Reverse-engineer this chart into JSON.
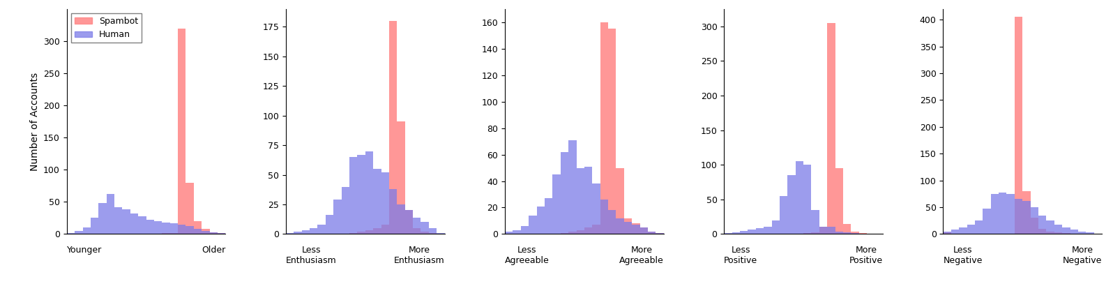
{
  "panels": [
    {
      "xlabel_left": "Younger",
      "xlabel_right": "Older",
      "ylabel": "Number of Accounts",
      "ylim": [
        0,
        350
      ],
      "yticks": [
        0,
        50,
        100,
        150,
        200,
        250,
        300
      ],
      "n_bins": 20,
      "spambot_vals": [
        0,
        0,
        0,
        0,
        0,
        0,
        0,
        0,
        0,
        0,
        0,
        0,
        1,
        2,
        320,
        80,
        20,
        8,
        3,
        1
      ],
      "human_vals": [
        2,
        5,
        10,
        25,
        48,
        62,
        42,
        38,
        32,
        28,
        22,
        20,
        18,
        17,
        15,
        12,
        8,
        5,
        3,
        1
      ]
    },
    {
      "xlabel_left": "Less\nEnthusiasm",
      "xlabel_right": "More\nEnthusiasm",
      "ylim": [
        0,
        190
      ],
      "yticks": [
        0,
        25,
        50,
        75,
        100,
        125,
        150,
        175
      ],
      "n_bins": 20,
      "spambot_vals": [
        0,
        0,
        0,
        0,
        0,
        0,
        0,
        0,
        1,
        2,
        3,
        5,
        8,
        180,
        95,
        20,
        5,
        2,
        1,
        0
      ],
      "human_vals": [
        1,
        2,
        3,
        5,
        8,
        16,
        29,
        40,
        65,
        67,
        70,
        55,
        52,
        38,
        25,
        20,
        14,
        10,
        5,
        1
      ]
    },
    {
      "xlabel_left": "Less\nAgreeable",
      "xlabel_right": "More\nAgreeable",
      "ylim": [
        0,
        170
      ],
      "yticks": [
        0,
        20,
        40,
        60,
        80,
        100,
        120,
        140,
        160
      ],
      "n_bins": 20,
      "spambot_vals": [
        0,
        0,
        0,
        0,
        0,
        0,
        0,
        1,
        2,
        3,
        5,
        7,
        160,
        155,
        50,
        12,
        8,
        5,
        2,
        1
      ],
      "human_vals": [
        2,
        3,
        6,
        14,
        21,
        27,
        45,
        62,
        71,
        50,
        51,
        38,
        26,
        18,
        12,
        9,
        7,
        5,
        2,
        1
      ]
    },
    {
      "xlabel_left": "Less\nPositive",
      "xlabel_right": "More\nPositive",
      "ylim": [
        0,
        325
      ],
      "yticks": [
        0,
        50,
        100,
        150,
        200,
        250,
        300
      ],
      "n_bins": 20,
      "spambot_vals": [
        0,
        0,
        0,
        0,
        0,
        0,
        0,
        0,
        0,
        0,
        1,
        2,
        10,
        305,
        95,
        15,
        3,
        1,
        0,
        0
      ],
      "human_vals": [
        1,
        2,
        4,
        6,
        8,
        10,
        20,
        55,
        85,
        105,
        100,
        35,
        10,
        10,
        3,
        2,
        1,
        0,
        0,
        0
      ]
    },
    {
      "xlabel_left": "Less\nNegative",
      "xlabel_right": "More\nNegative",
      "ylim": [
        0,
        420
      ],
      "yticks": [
        0,
        50,
        100,
        150,
        200,
        250,
        300,
        350,
        400
      ],
      "n_bins": 20,
      "spambot_vals": [
        3,
        1,
        0,
        0,
        0,
        0,
        0,
        0,
        0,
        405,
        80,
        30,
        10,
        5,
        3,
        2,
        1,
        0,
        0,
        0
      ],
      "human_vals": [
        5,
        8,
        12,
        18,
        25,
        48,
        75,
        78,
        75,
        65,
        62,
        50,
        35,
        25,
        18,
        12,
        8,
        5,
        3,
        1
      ]
    }
  ],
  "spambot_color": "#FF8585",
  "human_color": "#7B7BE8",
  "spambot_alpha": 0.85,
  "human_alpha": 0.75,
  "show_legend_panel": 0
}
